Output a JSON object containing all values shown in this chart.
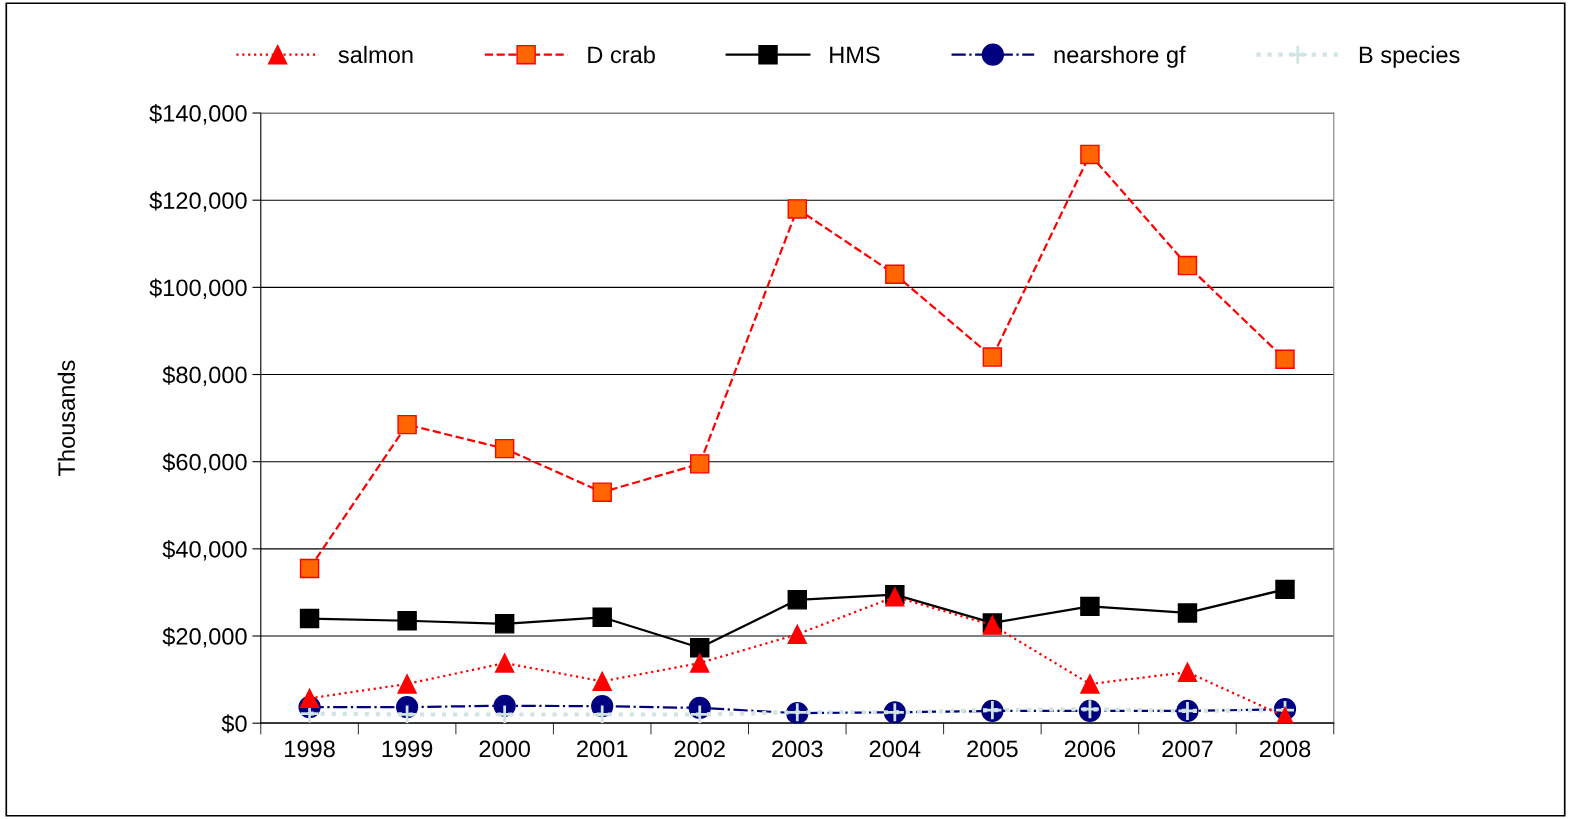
{
  "chart_data": {
    "type": "line",
    "ylabel": "Thousands",
    "categories": [
      "1998",
      "1999",
      "2000",
      "2001",
      "2002",
      "2003",
      "2004",
      "2005",
      "2006",
      "2007",
      "2008"
    ],
    "ylim": [
      0,
      140000
    ],
    "yticks": [
      {
        "value": 0,
        "label": "$0"
      },
      {
        "value": 20000,
        "label": "$20,000"
      },
      {
        "value": 40000,
        "label": "$40,000"
      },
      {
        "value": 60000,
        "label": "$60,000"
      },
      {
        "value": 80000,
        "label": "$80,000"
      },
      {
        "value": 100000,
        "label": "$100,000"
      },
      {
        "value": 120000,
        "label": "$120,000"
      },
      {
        "value": 140000,
        "label": "$140,000"
      }
    ],
    "grid": "y",
    "legend": "top",
    "series": [
      {
        "name": "salmon",
        "color": "#ff0000",
        "marker": "triangle",
        "line_style": "dotted",
        "values": [
          5700,
          9000,
          13800,
          9600,
          13800,
          20400,
          29000,
          22500,
          9000,
          11700,
          1500
        ]
      },
      {
        "name": "D crab",
        "color": "#ff0000",
        "marker": "square",
        "line_style": "dashed",
        "values": [
          35500,
          68500,
          63000,
          53000,
          59500,
          118000,
          103000,
          84000,
          130500,
          105000,
          83500
        ]
      },
      {
        "name": "HMS",
        "color": "#000000",
        "marker": "square",
        "line_style": "solid",
        "values": [
          24000,
          23500,
          22800,
          24300,
          17300,
          28300,
          29500,
          23000,
          26800,
          25300,
          30700
        ]
      },
      {
        "name": "nearshore gf",
        "color": "#000080",
        "marker": "circle",
        "line_style": "dashdot",
        "values": [
          3700,
          3700,
          4000,
          3900,
          3500,
          2300,
          2500,
          2800,
          2800,
          2800,
          3200
        ]
      },
      {
        "name": "B species",
        "color": "#d0e4e4",
        "marker": "cross",
        "line_style": "dotted",
        "values": [
          2200,
          2000,
          2000,
          2000,
          2000,
          2500,
          2500,
          3000,
          3200,
          2800,
          3000
        ]
      }
    ]
  }
}
